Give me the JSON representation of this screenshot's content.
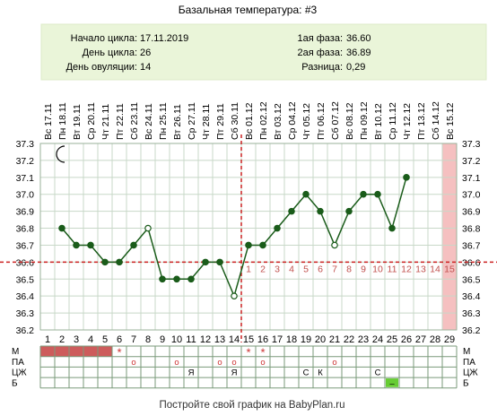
{
  "header": {
    "title": "Базальная температура: #3",
    "info_left": [
      {
        "label": "Начало цикла:",
        "value": "17.11.2019"
      },
      {
        "label": "День цикла:",
        "value": "26"
      },
      {
        "label": "День овуляции:",
        "value": "14"
      }
    ],
    "info_right": [
      {
        "label": "1ая фаза:",
        "value": "36.60"
      },
      {
        "label": "2ая фаза:",
        "value": "36.89"
      },
      {
        "label": "Разница:",
        "value": "0,29"
      }
    ]
  },
  "footer": "Постройте свой график на BabyPlan.ru",
  "colors": {
    "header_bg": "#eaf5d9",
    "line": "#1a5c1a",
    "reference": "#cc2222",
    "menses": "#cd5c5c",
    "future_band": "#f5c0c0",
    "highlight_green": "#66cc33",
    "phase2_numbers": "#c0504d"
  },
  "chart_data": {
    "type": "line",
    "x_cycle_days": [
      1,
      2,
      3,
      4,
      5,
      6,
      7,
      8,
      9,
      10,
      11,
      12,
      13,
      14,
      15,
      16,
      17,
      18,
      19,
      20,
      21,
      22,
      23,
      24,
      25,
      26,
      27,
      28,
      29
    ],
    "dates": [
      "Вс 17.11",
      "Пн 18.11",
      "Вт 19.11",
      "Ср 20.11",
      "Чт 21.11",
      "Пт 22.11",
      "Сб 23.11",
      "Вс 24.11",
      "Пн 25.11",
      "Вт 26.11",
      "Ср 27.11",
      "Чт 28.11",
      "Пт 29.11",
      "Сб 30.11",
      "Вс 01.12",
      "Пн 02.12",
      "Вт 03.12",
      "Ср 04.12",
      "Чт 05.12",
      "Пт 06.12",
      "Сб 07.12",
      "Вс 08.12",
      "Пн 09.12",
      "Вт 10.12",
      "Ср 11.12",
      "Чт 12.12",
      "Пт 13.12",
      "Сб 14.12",
      "Вс 15.12"
    ],
    "series": [
      {
        "values": [
          null,
          36.8,
          36.7,
          36.7,
          36.6,
          36.6,
          36.7,
          36.8,
          36.5,
          36.5,
          36.5,
          36.6,
          36.6,
          36.4,
          36.7,
          36.7,
          36.8,
          36.9,
          37.0,
          36.9,
          36.7,
          36.9,
          37.0,
          37.0,
          36.8,
          37.1,
          null,
          null,
          null
        ]
      }
    ],
    "open_points": [
      8,
      14,
      21
    ],
    "ylim": [
      36.2,
      37.3
    ],
    "yticks": [
      "36.2",
      "36.3",
      "36.4",
      "36.5",
      "36.6",
      "36.7",
      "36.8",
      "36.9",
      "37.0",
      "37.1",
      "37.2",
      "37.3"
    ],
    "coverline": 36.6,
    "ovulation_day": 14,
    "phase2_day_labels": [
      "1",
      "2",
      "3",
      "4",
      "5",
      "6",
      "7",
      "8",
      "9",
      "10",
      "11",
      "12",
      "13",
      "14",
      "15"
    ],
    "grid": true,
    "moon_icon": "crescent-moon-icon"
  },
  "bottom_table": {
    "row_labels": [
      "М",
      "ПА",
      "ЦЖ",
      "Б"
    ],
    "menses_days": [
      1,
      2,
      3,
      4,
      5
    ],
    "markers": [
      {
        "row": 0,
        "day": 6,
        "text": "*"
      },
      {
        "row": 0,
        "day": 15,
        "text": "*"
      },
      {
        "row": 0,
        "day": 16,
        "text": "*"
      },
      {
        "row": 1,
        "day": 7,
        "text": "o"
      },
      {
        "row": 1,
        "day": 10,
        "text": "o"
      },
      {
        "row": 1,
        "day": 13,
        "text": "o"
      },
      {
        "row": 1,
        "day": 14,
        "text": "o"
      },
      {
        "row": 1,
        "day": 16,
        "text": "o"
      },
      {
        "row": 1,
        "day": 21,
        "text": "o"
      },
      {
        "row": 2,
        "day": 11,
        "text": "Я"
      },
      {
        "row": 2,
        "day": 14,
        "text": "Я"
      },
      {
        "row": 2,
        "day": 19,
        "text": "С"
      },
      {
        "row": 2,
        "day": 20,
        "text": "К"
      },
      {
        "row": 2,
        "day": 24,
        "text": "С"
      },
      {
        "row": 3,
        "day": 25,
        "text": "–"
      }
    ]
  }
}
